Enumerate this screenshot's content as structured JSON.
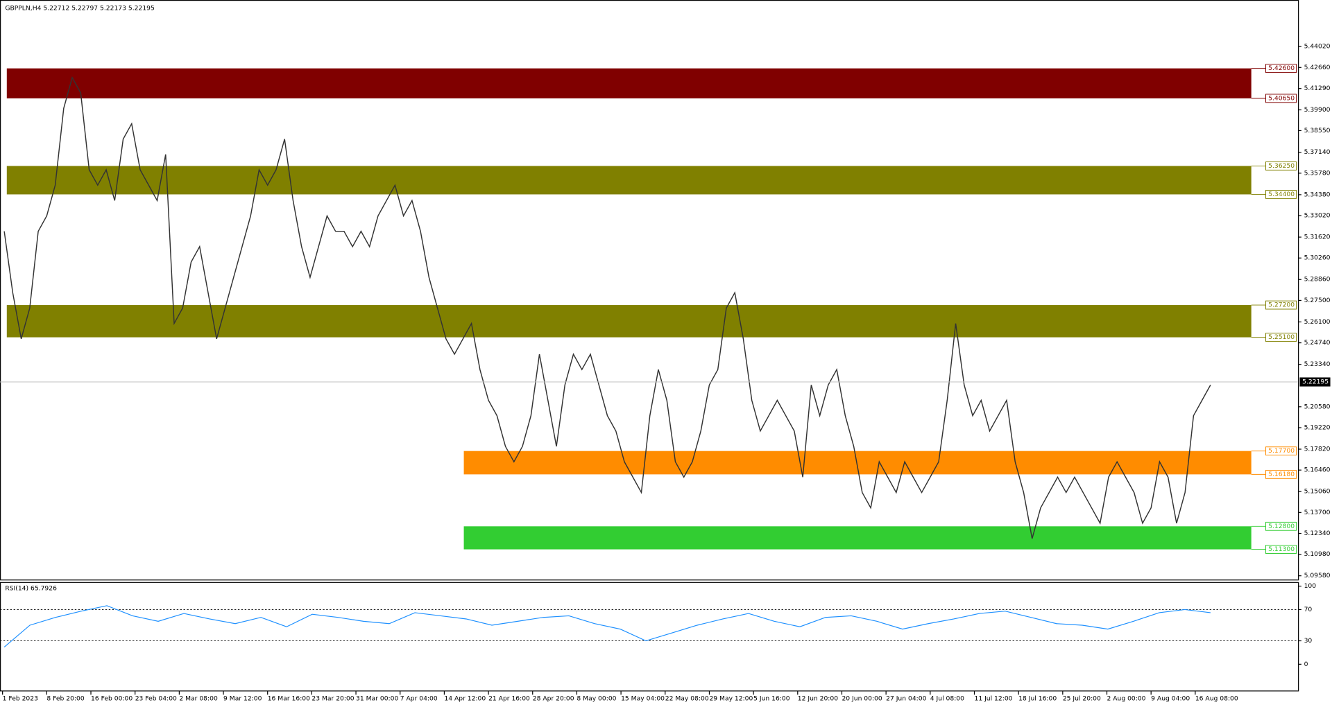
{
  "chart_data": {
    "type": "line",
    "title": "GBPPLN,H4  5.22712 5.22797 5.22173 5.22195",
    "color": "#333333",
    "values": [
      5.32,
      5.28,
      5.25,
      5.27,
      5.32,
      5.33,
      5.35,
      5.4,
      5.42,
      5.41,
      5.36,
      5.35,
      5.36,
      5.34,
      5.38,
      5.39,
      5.36,
      5.35,
      5.34,
      5.37,
      5.26,
      5.27,
      5.3,
      5.31,
      5.28,
      5.25,
      5.27,
      5.29,
      5.31,
      5.33,
      5.36,
      5.35,
      5.36,
      5.38,
      5.34,
      5.31,
      5.29,
      5.31,
      5.33,
      5.32,
      5.32,
      5.31,
      5.32,
      5.31,
      5.33,
      5.34,
      5.35,
      5.33,
      5.34,
      5.32,
      5.29,
      5.27,
      5.25,
      5.24,
      5.25,
      5.26,
      5.23,
      5.21,
      5.2,
      5.18,
      5.17,
      5.18,
      5.2,
      5.24,
      5.21,
      5.18,
      5.22,
      5.24,
      5.23,
      5.24,
      5.22,
      5.2,
      5.19,
      5.17,
      5.16,
      5.15,
      5.2,
      5.23,
      5.21,
      5.17,
      5.16,
      5.17,
      5.19,
      5.22,
      5.23,
      5.27,
      5.28,
      5.25,
      5.21,
      5.19,
      5.2,
      5.21,
      5.2,
      5.19,
      5.16,
      5.22,
      5.2,
      5.22,
      5.23,
      5.2,
      5.18,
      5.15,
      5.14,
      5.17,
      5.16,
      5.15,
      5.17,
      5.16,
      5.15,
      5.16,
      5.17,
      5.21,
      5.26,
      5.22,
      5.2,
      5.21,
      5.19,
      5.2,
      5.21,
      5.17,
      5.15,
      5.12,
      5.14,
      5.15,
      5.16,
      5.15,
      5.16,
      5.15,
      5.14,
      5.13,
      5.16,
      5.17,
      5.16,
      5.15,
      5.13,
      5.14,
      5.17,
      5.16,
      5.13,
      5.15,
      5.2,
      5.21,
      5.22
    ],
    "ylim": [
      5.0928,
      5.4705
    ],
    "yticks": [
      {
        "value": 5.4402,
        "label": "5.44020"
      },
      {
        "value": 5.4266,
        "label": "5.42660"
      },
      {
        "value": 5.4129,
        "label": "5.41290"
      },
      {
        "value": 5.399,
        "label": "5.39900"
      },
      {
        "value": 5.3855,
        "label": "5.38550"
      },
      {
        "value": 5.3714,
        "label": "5.37140"
      },
      {
        "value": 5.3578,
        "label": "5.35780"
      },
      {
        "value": 5.3438,
        "label": "5.34380"
      },
      {
        "value": 5.3302,
        "label": "5.33020"
      },
      {
        "value": 5.3162,
        "label": "5.31620"
      },
      {
        "value": 5.3026,
        "label": "5.30260"
      },
      {
        "value": 5.2886,
        "label": "5.28860"
      },
      {
        "value": 5.275,
        "label": "5.27500"
      },
      {
        "value": 5.261,
        "label": "5.26100"
      },
      {
        "value": 5.2474,
        "label": "5.24740"
      },
      {
        "value": 5.2334,
        "label": "5.23340"
      },
      {
        "value": 5.2058,
        "label": "5.20580"
      },
      {
        "value": 5.1922,
        "label": "5.19220"
      },
      {
        "value": 5.1782,
        "label": "5.17820"
      },
      {
        "value": 5.1646,
        "label": "5.16460"
      },
      {
        "value": 5.1506,
        "label": "5.15060"
      },
      {
        "value": 5.137,
        "label": "5.13700"
      },
      {
        "value": 5.1234,
        "label": "5.12340"
      },
      {
        "value": 5.1098,
        "label": "5.10980"
      },
      {
        "value": 5.0958,
        "label": "5.09580"
      }
    ],
    "current_price": {
      "value": 5.22195,
      "label": "5.22195"
    },
    "zones": [
      {
        "color": "#800000",
        "high": {
          "value": 5.426,
          "label": "5.42600"
        },
        "low": {
          "value": 5.4065,
          "label": "5.40650"
        }
      },
      {
        "color": "#808000",
        "high": {
          "value": 5.3625,
          "label": "5.36250"
        },
        "low": {
          "value": 5.344,
          "label": "5.34400"
        }
      },
      {
        "color": "#808000",
        "high": {
          "value": 5.272,
          "label": "5.27200"
        },
        "low": {
          "value": 5.251,
          "label": "5.25100"
        }
      },
      {
        "color": "#ff8c00",
        "high": {
          "value": 5.177,
          "label": "5.17700"
        },
        "low": {
          "value": 5.1618,
          "label": "5.16180"
        }
      },
      {
        "color": "#32cd32",
        "high": {
          "value": 5.128,
          "label": "5.12800"
        },
        "low": {
          "value": 5.113,
          "label": "5.11300"
        }
      }
    ],
    "x_labels": [
      "1 Feb 2023",
      "8 Feb 20:00",
      "16 Feb 00:00",
      "23 Feb 04:00",
      "2 Mar 08:00",
      "9 Mar 12:00",
      "16 Mar 16:00",
      "23 Mar 20:00",
      "31 Mar 00:00",
      "7 Apr 04:00",
      "14 Apr 12:00",
      "21 Apr 16:00",
      "28 Apr 20:00",
      "8 May 00:00",
      "15 May 04:00",
      "22 May 08:00",
      "29 May 12:00",
      "5 Jun 16:00",
      "12 Jun 20:00",
      "20 Jun 00:00",
      "27 Jun 04:00",
      "4 Jul 08:00",
      "11 Jul 12:00",
      "18 Jul 16:00",
      "25 Jul 20:00",
      "2 Aug 00:00",
      "9 Aug 04:00",
      "16 Aug 08:00"
    ],
    "rsi": {
      "title": "RSI(14) 65.7926",
      "color": "#1e90ff",
      "values": [
        22,
        50,
        60,
        68,
        75,
        62,
        55,
        65,
        58,
        52,
        60,
        48,
        64,
        60,
        55,
        52,
        66,
        62,
        58,
        50,
        55,
        60,
        62,
        52,
        45,
        30,
        40,
        50,
        58,
        65,
        55,
        48,
        60,
        62,
        55,
        45,
        52,
        58,
        65,
        68,
        60,
        52,
        50,
        45,
        55,
        66,
        70,
        66
      ],
      "ylim": [
        0,
        100
      ],
      "yticks": [
        100,
        70,
        30,
        0
      ],
      "levels": [
        70,
        30
      ]
    }
  }
}
